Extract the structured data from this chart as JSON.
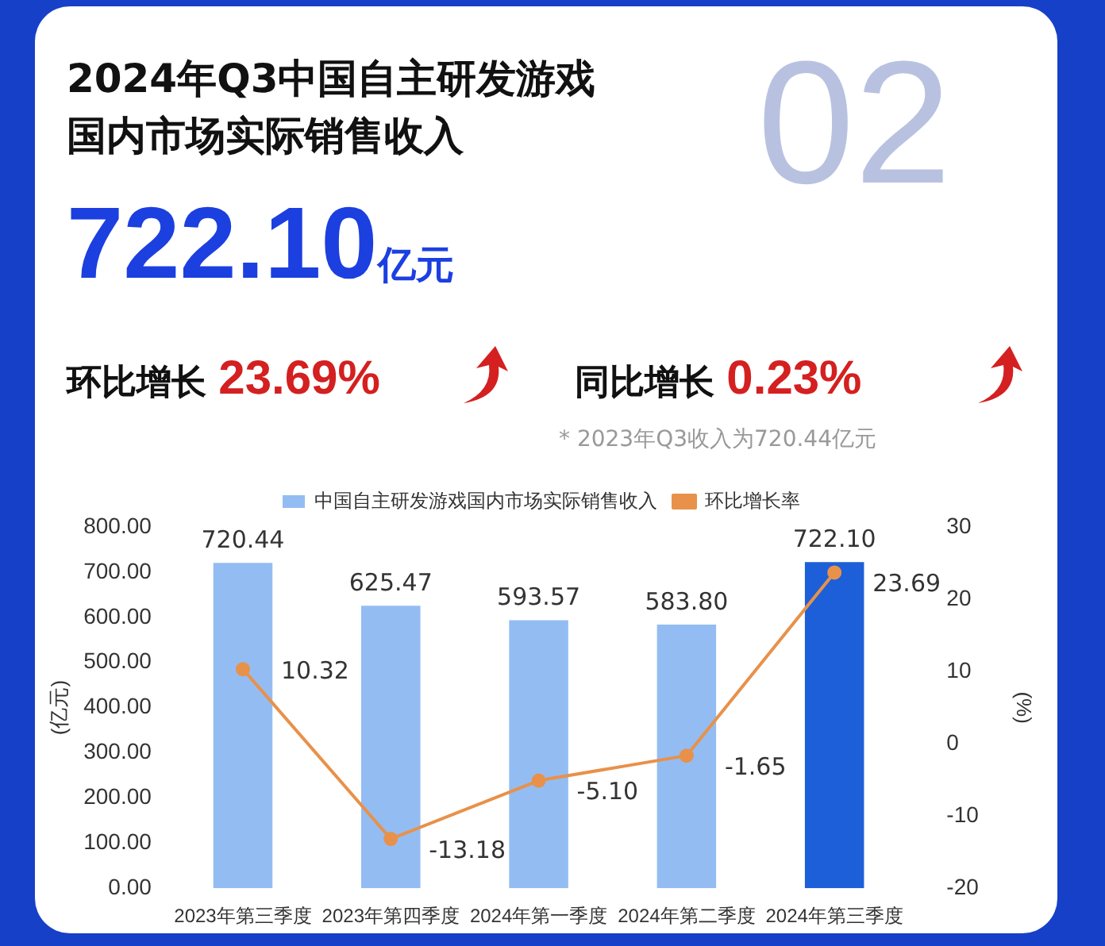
{
  "chart_data": {
    "type": "bar",
    "title": "2024年Q3中国自主研发游戏国内市场实际销售收入",
    "annotations": [
      "02",
      "722.10亿元",
      "环比增长 23.69%",
      "同比增长 0.23%",
      "* 2023年Q3收入为720.44亿元"
    ],
    "categories": [
      "2023年第三季度",
      "2023年第四季度",
      "2024年第一季度",
      "2024年第二季度",
      "2024年第三季度"
    ],
    "series": [
      {
        "name": "中国自主研发游戏国内市场实际销售收入",
        "color": "#93bdf2",
        "colors": [
          "#93bdf2",
          "#93bdf2",
          "#93bdf2",
          "#93bdf2",
          "#1c5fd8"
        ],
        "values": [
          720.44,
          625.47,
          593.57,
          583.8,
          722.1
        ],
        "value_labels": [
          "720.44",
          "625.47",
          "593.57",
          "583.80",
          "722.10"
        ]
      },
      {
        "name": "环比增长率",
        "type": "line",
        "axis": "y2",
        "color": "#e8914a",
        "values": [
          10.32,
          -13.18,
          -5.1,
          -1.65,
          23.69
        ],
        "value_labels": [
          "10.32",
          "-13.18",
          "-5.10",
          "-1.65",
          "23.69"
        ]
      }
    ],
    "ylabel": "(亿元)",
    "y2label": "(%)",
    "ylim": [
      0,
      800
    ],
    "yticks": [
      {
        "value": 0,
        "label": "0.00"
      },
      {
        "value": 100,
        "label": "100.00"
      },
      {
        "value": 200,
        "label": "200.00"
      },
      {
        "value": 300,
        "label": "300.00"
      },
      {
        "value": 400,
        "label": "400.00"
      },
      {
        "value": 500,
        "label": "500.00"
      },
      {
        "value": 600,
        "label": "600.00"
      },
      {
        "value": 700,
        "label": "700.00"
      },
      {
        "value": 800,
        "label": "800.00"
      }
    ],
    "y2lim": [
      -20,
      30
    ],
    "y2ticks": [
      -20,
      -10,
      0,
      10,
      20,
      30
    ],
    "legend": "top",
    "marker": "circle"
  }
}
